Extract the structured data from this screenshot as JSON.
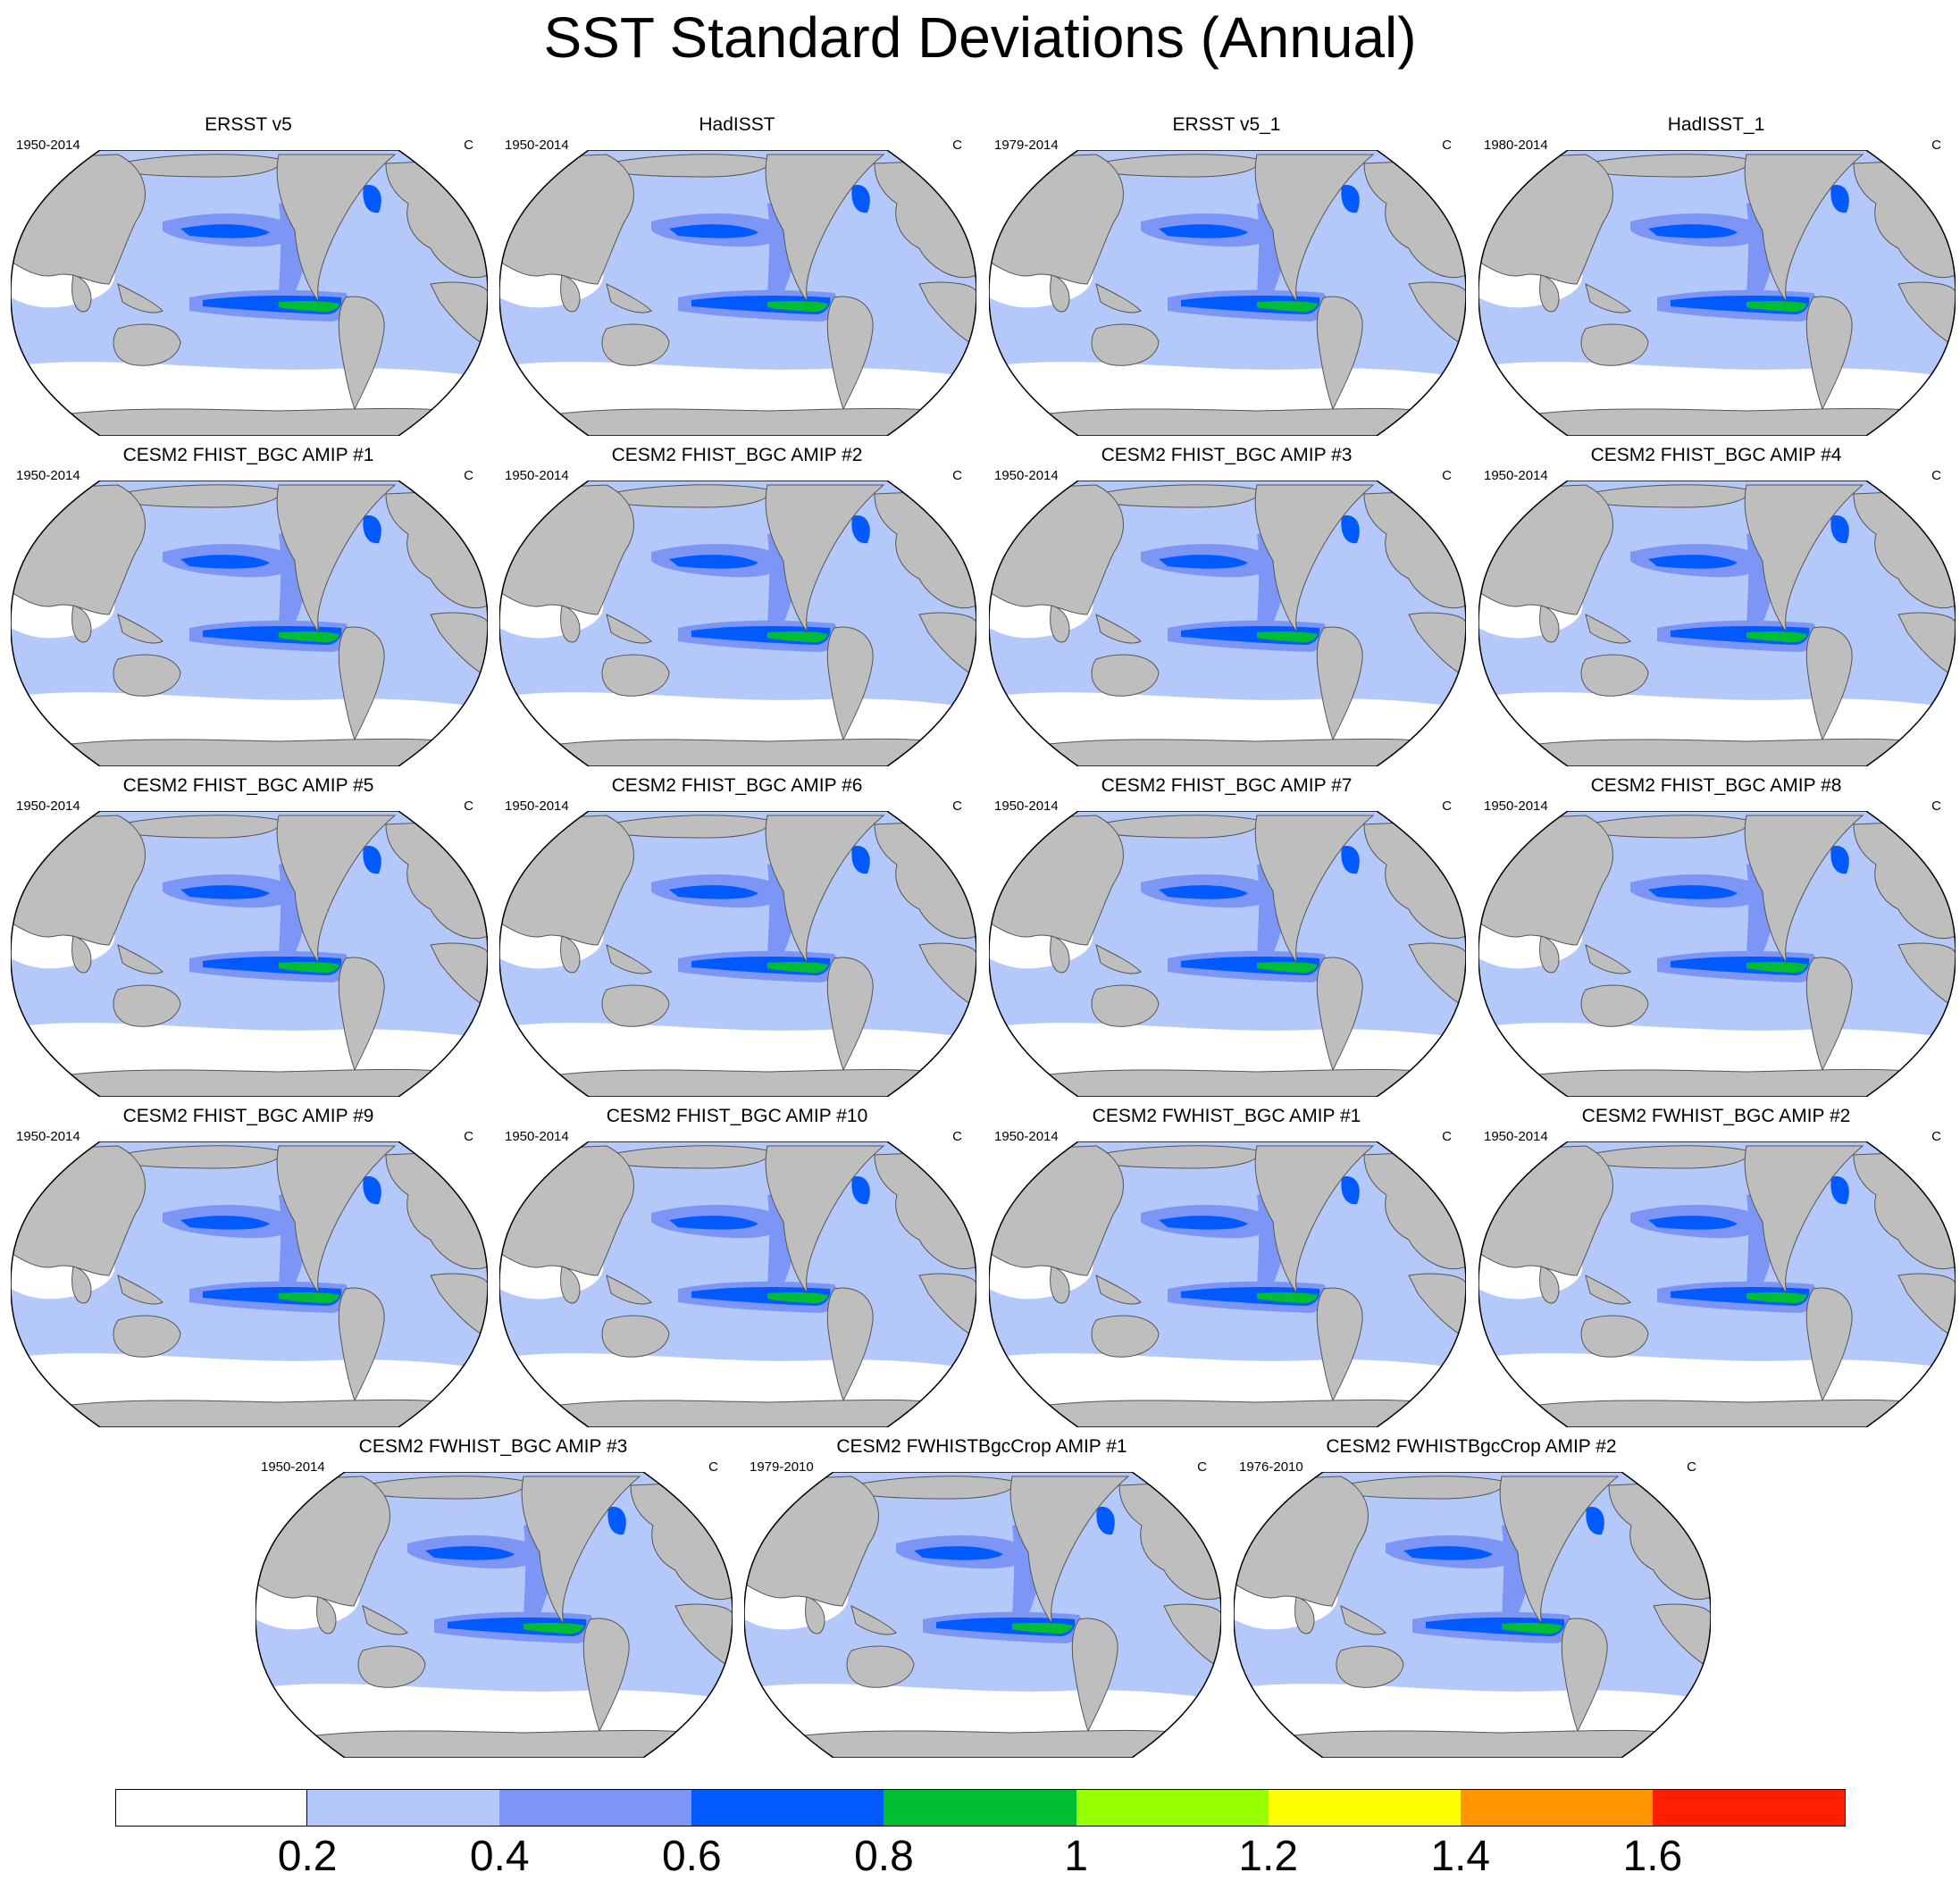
{
  "title": "SST Standard Deviations (Annual)",
  "panels": [
    {
      "title": "ERSST v5",
      "period": "1950-2014",
      "units": "C"
    },
    {
      "title": "HadISST",
      "period": "1950-2014",
      "units": "C"
    },
    {
      "title": "ERSST v5_1",
      "period": "1979-2014",
      "units": "C"
    },
    {
      "title": "HadISST_1",
      "period": "1980-2014",
      "units": "C"
    },
    {
      "title": "CESM2 FHIST_BGC AMIP #1",
      "period": "1950-2014",
      "units": "C"
    },
    {
      "title": "CESM2 FHIST_BGC AMIP #2",
      "period": "1950-2014",
      "units": "C"
    },
    {
      "title": "CESM2 FHIST_BGC AMIP #3",
      "period": "1950-2014",
      "units": "C"
    },
    {
      "title": "CESM2 FHIST_BGC AMIP #4",
      "period": "1950-2014",
      "units": "C"
    },
    {
      "title": "CESM2 FHIST_BGC AMIP #5",
      "period": "1950-2014",
      "units": "C"
    },
    {
      "title": "CESM2 FHIST_BGC AMIP #6",
      "period": "1950-2014",
      "units": "C"
    },
    {
      "title": "CESM2 FHIST_BGC AMIP #7",
      "period": "1950-2014",
      "units": "C"
    },
    {
      "title": "CESM2 FHIST_BGC AMIP #8",
      "period": "1950-2014",
      "units": "C"
    },
    {
      "title": "CESM2 FHIST_BGC AMIP #9",
      "period": "1950-2014",
      "units": "C"
    },
    {
      "title": "CESM2 FHIST_BGC AMIP #10",
      "period": "1950-2014",
      "units": "C"
    },
    {
      "title": "CESM2 FWHIST_BGC AMIP #1",
      "period": "1950-2014",
      "units": "C"
    },
    {
      "title": "CESM2 FWHIST_BGC AMIP #2",
      "period": "1950-2014",
      "units": "C"
    },
    {
      "title": "CESM2 FWHIST_BGC AMIP #3",
      "period": "1950-2014",
      "units": "C"
    },
    {
      "title": "CESM2 FWHISTBgcCrop AMIP #1",
      "period": "1979-2010",
      "units": "C"
    },
    {
      "title": "CESM2 FWHISTBgcCrop AMIP #2",
      "period": "1976-2010",
      "units": "C"
    }
  ],
  "colorbar": {
    "labels": [
      "0.2",
      "0.4",
      "0.6",
      "0.8",
      "1",
      "1.2",
      "1.4",
      "1.6"
    ],
    "colors": [
      "#ffffff",
      "#b4c8fa",
      "#7d96f5",
      "#005aff",
      "#00be32",
      "#96ff00",
      "#ffff00",
      "#ff9600",
      "#ff1e00"
    ]
  },
  "map_colors": {
    "land": "#bebebe",
    "ocean": "#b4c8fa",
    "low": "#ffffff",
    "mid": "#7d96f5",
    "high": "#005aff",
    "peak": "#00be32"
  }
}
